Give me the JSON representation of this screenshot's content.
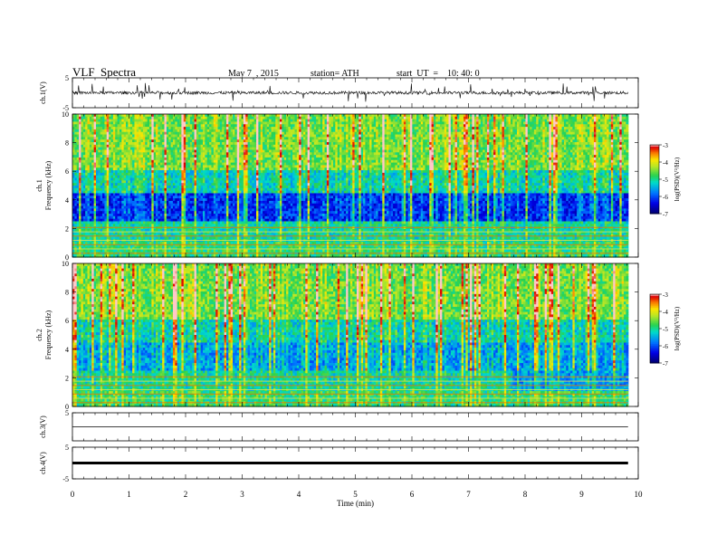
{
  "header": {
    "title": "VLF  Spectra",
    "date": "May 7  , 2015",
    "station": "station= ATH",
    "start": "start  UT  =    10: 40: 0"
  },
  "chart_data": {
    "type": "spectrogram",
    "x_axis": {
      "label": "Time  (min)",
      "range": [
        0,
        10
      ],
      "ticks": [
        "0",
        "1",
        "2",
        "3",
        "4",
        "5",
        "6",
        "7",
        "8",
        "9",
        "10"
      ],
      "data_end": 9.82
    },
    "panels": [
      {
        "id": "ch1-waveform",
        "type": "line",
        "ylabel": "ch.1(V)",
        "ylim": [
          -5,
          5
        ],
        "yticks": [
          "5",
          "-5"
        ],
        "baseline": 0.0,
        "amplitude": 1.0
      },
      {
        "id": "ch1-spectrogram",
        "type": "heatmap",
        "ylabel": "ch.1\nFrequency  (kHz)",
        "ylim": [
          0,
          10
        ],
        "yticks": [
          "0",
          "2",
          "4",
          "6",
          "8",
          "10"
        ],
        "colorbar": {
          "label": "log(PSD)(V²/Hz)",
          "range": [
            -7,
            -3
          ],
          "ticks": [
            "-3",
            "-4",
            "-5",
            "-6",
            "-7"
          ]
        }
      },
      {
        "id": "ch2-spectrogram",
        "type": "heatmap",
        "ylabel": "ch.2\nFrequency  (kHz)",
        "ylim": [
          0,
          10
        ],
        "yticks": [
          "0",
          "2",
          "4",
          "6",
          "8",
          "10"
        ],
        "colorbar": {
          "label": "log(PSD)(V²/Hz)",
          "range": [
            -7,
            -3
          ],
          "ticks": [
            "-3",
            "-4",
            "-5",
            "-6",
            "-7"
          ]
        }
      },
      {
        "id": "ch3-waveform",
        "type": "line",
        "ylabel": "ch.3(V)",
        "ylim": [
          -5,
          5
        ],
        "yticks": [
          "5"
        ],
        "baseline": 0.0,
        "amplitude": 0.0
      },
      {
        "id": "ch4-waveform",
        "type": "line",
        "ylabel": "ch.4(V)",
        "ylim": [
          -5,
          5
        ],
        "yticks": [
          "5",
          "-5"
        ],
        "baseline": 0.0,
        "amplitude": 0.0
      }
    ]
  }
}
